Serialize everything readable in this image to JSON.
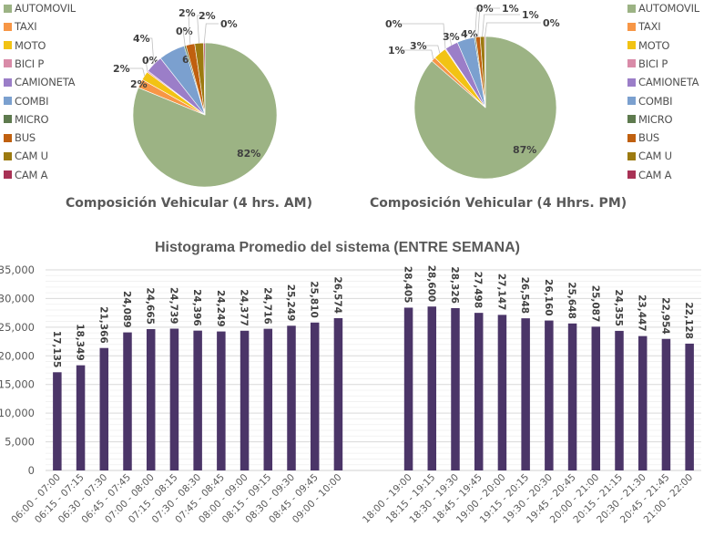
{
  "chart_data": [
    {
      "type": "pie",
      "title": "Composición Vehicular (4 hrs. AM)",
      "legend_position": "left",
      "categories": [
        "AUTOMOVIL",
        "TAXI",
        "MOTO",
        "BICI P",
        "CAMIONETA",
        "COMBI",
        "MICRO",
        "BUS",
        "CAM U",
        "CAM A"
      ],
      "values": [
        82,
        2,
        2,
        0.3,
        4,
        6,
        0.4,
        2,
        2,
        0.3
      ],
      "labels": [
        "82%",
        "2%",
        "2%",
        "0%",
        "4%",
        "6%",
        "0%",
        "2%",
        "2%",
        "0%"
      ],
      "colors": [
        "#9CB384",
        "#F79646",
        "#F2C314",
        "#D98BA8",
        "#9B7EC8",
        "#7BA0CF",
        "#5E7A4E",
        "#C0600F",
        "#9C7A10",
        "#A83255"
      ]
    },
    {
      "type": "pie",
      "title": "Composición Vehicular (4 Hhrs. PM)",
      "legend_position": "right",
      "categories": [
        "AUTOMOVIL",
        "TAXI",
        "MOTO",
        "BICI P",
        "CAMIONETA",
        "COMBI",
        "MICRO",
        "BUS",
        "CAM U",
        "CAM A"
      ],
      "values": [
        87,
        1,
        3,
        0.2,
        3,
        4,
        0.3,
        1,
        1,
        0.2
      ],
      "labels": [
        "87%",
        "1%",
        "3%",
        "0%",
        "3%",
        "4%",
        "0%",
        "1%",
        "1%",
        "0%"
      ],
      "colors": [
        "#9CB384",
        "#F79646",
        "#F2C314",
        "#D98BA8",
        "#9B7EC8",
        "#7BA0CF",
        "#5E7A4E",
        "#C0600F",
        "#9C7A10",
        "#A83255"
      ]
    },
    {
      "type": "bar",
      "title": "Histograma Promedio del sistema (ENTRE SEMANA)",
      "xlabel": "",
      "ylabel": "",
      "ylim": [
        0,
        35000
      ],
      "yticks": [
        0,
        5000,
        10000,
        15000,
        20000,
        25000,
        30000,
        35000
      ],
      "ytick_labels": [
        "0",
        "5,000",
        "10,000",
        "15,000",
        "20,000",
        "25,000",
        "30,000",
        "35,000"
      ],
      "grid": true,
      "bar_color": "#4B3568",
      "categories": [
        "06:00 - 07:00",
        "06:15 - 07:15",
        "06:30 - 07:30",
        "06:45 - 07:45",
        "07:00 - 08:00",
        "07:15 - 08:15",
        "07:30 - 08:30",
        "07:45 - 08:45",
        "08:00 - 09:00",
        "08:15 - 09:15",
        "08:30 - 09:30",
        "08:45 - 09:45",
        "09:00 - 10:00",
        "",
        "",
        "18:00 - 19:00",
        "18:15 - 19:15",
        "18:30 - 19:30",
        "18:45 - 19:45",
        "19:00 - 20:00",
        "19:15 - 20:15",
        "19:30 - 20:30",
        "19:45 - 20:45",
        "20:00 - 21:00",
        "20:15 - 21:15",
        "20:30 - 21:30",
        "20:45 - 21:45",
        "21:00 - 22:00"
      ],
      "values": [
        17135,
        18349,
        21366,
        24089,
        24665,
        24739,
        24396,
        24249,
        24377,
        24716,
        25249,
        25810,
        26574,
        null,
        null,
        28405,
        28600,
        28326,
        27498,
        27147,
        26548,
        26160,
        25648,
        25087,
        24355,
        23447,
        22954,
        22128
      ],
      "data_labels": [
        "17,135",
        "18,349",
        "21,366",
        "24,089",
        "24,665",
        "24,739",
        "24,396",
        "24,249",
        "24,377",
        "24,716",
        "25,249",
        "25,810",
        "26,574",
        "",
        "",
        "28,405",
        "28,600",
        "28,326",
        "27,498",
        "27,147",
        "26,548",
        "26,160",
        "25,648",
        "25,087",
        "24,355",
        "23,447",
        "22,954",
        "22,128"
      ]
    }
  ]
}
